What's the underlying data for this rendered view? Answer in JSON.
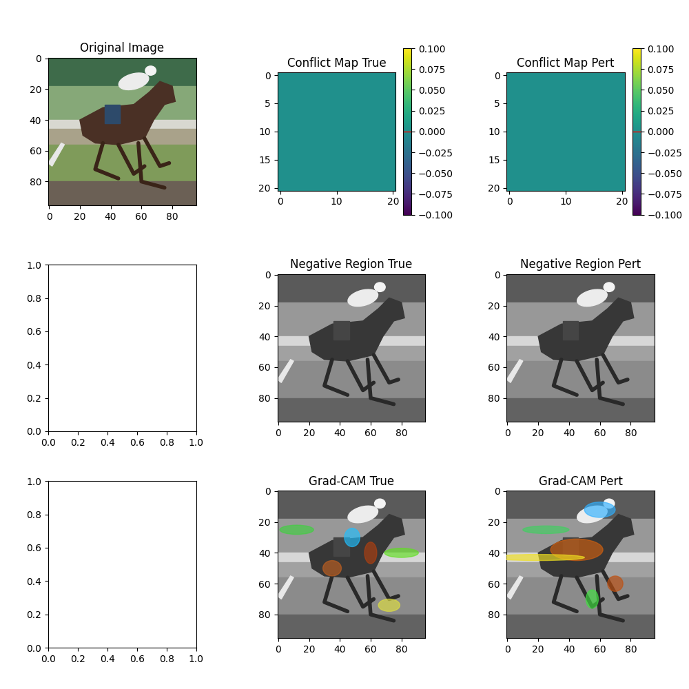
{
  "chart_data": [
    {
      "type": "image",
      "title": "Original Image",
      "xlim": [
        -0.5,
        95.5
      ],
      "ylim": [
        95.5,
        -0.5
      ],
      "xticks": [
        0,
        20,
        40,
        60,
        80
      ],
      "yticks": [
        0,
        20,
        40,
        60,
        80
      ]
    },
    {
      "type": "heatmap",
      "title": "Conflict Map True",
      "xlim": [
        -0.5,
        20.5
      ],
      "ylim": [
        20.5,
        -0.5
      ],
      "xticks": [
        0,
        10,
        20
      ],
      "yticks": [
        0,
        5,
        10,
        15,
        20
      ],
      "cells": [
        [
          0,
          0,
          0,
          0,
          0,
          0,
          0,
          0,
          0,
          0,
          0,
          0,
          0,
          0,
          0,
          0,
          0,
          0,
          0,
          0,
          0
        ],
        [
          0,
          0,
          0,
          0,
          0,
          0,
          0,
          0,
          0,
          0,
          0,
          0,
          0,
          0,
          0,
          0,
          0,
          0,
          0,
          0,
          0
        ],
        [
          0,
          0,
          0,
          0,
          0,
          0,
          0,
          0,
          0,
          0,
          0,
          0,
          0,
          0,
          0,
          0,
          0,
          0,
          0,
          0,
          0
        ],
        [
          0,
          0,
          0,
          0,
          0,
          0,
          0,
          0,
          0,
          0,
          0,
          0,
          0,
          0,
          0,
          0,
          0,
          0,
          0,
          0,
          0
        ],
        [
          0,
          0,
          0,
          0,
          0,
          0,
          0,
          0,
          0,
          0,
          0,
          0,
          0,
          0,
          0,
          0,
          0,
          0,
          0,
          0,
          0
        ],
        [
          0,
          0,
          0,
          0,
          0,
          0,
          0,
          0,
          0,
          0,
          0,
          0,
          0,
          0,
          0,
          0,
          0,
          0,
          0,
          0,
          0
        ],
        [
          0,
          0,
          0,
          0,
          0,
          0,
          0,
          0,
          0,
          0,
          0,
          0,
          0,
          0,
          0,
          0,
          0,
          0,
          0,
          0,
          0
        ],
        [
          0,
          0,
          0,
          0,
          0,
          0,
          0,
          0,
          0,
          0,
          0,
          0,
          0,
          0,
          0,
          0,
          0,
          0,
          0,
          0,
          0
        ],
        [
          0,
          0,
          0,
          0,
          0,
          0,
          0,
          0,
          0,
          0,
          0,
          0,
          0,
          0,
          0,
          0,
          0,
          0,
          0,
          0,
          0
        ],
        [
          0,
          0,
          0,
          0,
          0,
          0,
          0,
          0,
          0,
          0,
          0,
          0,
          0,
          0,
          0,
          0,
          0,
          0,
          0,
          0,
          0
        ],
        [
          0,
          0,
          0,
          0,
          0,
          0,
          0,
          0,
          0,
          0,
          0,
          0,
          0,
          0,
          0,
          0,
          0,
          0,
          0,
          0,
          0
        ],
        [
          0,
          0,
          0,
          0,
          0,
          0,
          0,
          0,
          0,
          0,
          0,
          0,
          0,
          0,
          0,
          0,
          0,
          0,
          0,
          0,
          0
        ],
        [
          0,
          0,
          0,
          0,
          0,
          0,
          0,
          0,
          0,
          0,
          0,
          0,
          0,
          0,
          0,
          0,
          0,
          0,
          0,
          0,
          0
        ],
        [
          0,
          0,
          0,
          0,
          0,
          0,
          0,
          0,
          0,
          0,
          0,
          0,
          0,
          0,
          0,
          0,
          0,
          0,
          0,
          0,
          0
        ],
        [
          0,
          0,
          0,
          0,
          0,
          0,
          0,
          0,
          0,
          0,
          0,
          0,
          0,
          0,
          0,
          0,
          0,
          0,
          0,
          0,
          0
        ],
        [
          0,
          0,
          0,
          0,
          0,
          0,
          0,
          0,
          0,
          0,
          0,
          0,
          0,
          0,
          0,
          0,
          0,
          0,
          0,
          0,
          0
        ],
        [
          0,
          0,
          0,
          0,
          0,
          0,
          0,
          0,
          0,
          0,
          0,
          0,
          0,
          0,
          0,
          0,
          0,
          0,
          0,
          0,
          0
        ],
        [
          0,
          0,
          0,
          0,
          0,
          0,
          0,
          0,
          0,
          0,
          0,
          0,
          0,
          0,
          0,
          0,
          0,
          0,
          0,
          0,
          0
        ],
        [
          0,
          0,
          0,
          0,
          0,
          0,
          0,
          0,
          0,
          0,
          0,
          0,
          0,
          0,
          0,
          0,
          0,
          0,
          0,
          0,
          0
        ],
        [
          0,
          0,
          0,
          0,
          0,
          0,
          0,
          0,
          0,
          0,
          0,
          0,
          0,
          0,
          0,
          0,
          0,
          0,
          0,
          0,
          0
        ],
        [
          0,
          0,
          0,
          0,
          0,
          0,
          0,
          0,
          0,
          0,
          0,
          0,
          0,
          0,
          0,
          0,
          0,
          0,
          0,
          0,
          0
        ]
      ],
      "color_range": [
        -0.1,
        0.1
      ],
      "color_ticks": [
        {
          "value": -0.1,
          "label": "−0.100"
        },
        {
          "value": -0.075,
          "label": "−0.075"
        },
        {
          "value": -0.05,
          "label": "−0.050"
        },
        {
          "value": -0.025,
          "label": "−0.025"
        },
        {
          "value": 0,
          "label": "0.000"
        },
        {
          "value": 0.025,
          "label": "0.025"
        },
        {
          "value": 0.05,
          "label": "0.050"
        },
        {
          "value": 0.075,
          "label": "0.075"
        },
        {
          "value": 0.1,
          "label": "0.100"
        }
      ]
    },
    {
      "type": "heatmap",
      "title": "Conflict Map Pert",
      "xlim": [
        -0.5,
        20.5
      ],
      "ylim": [
        20.5,
        -0.5
      ],
      "xticks": [
        0,
        10,
        20
      ],
      "yticks": [
        0,
        5,
        10,
        15,
        20
      ],
      "cells": [
        [
          0,
          0,
          0,
          0,
          0,
          0,
          0,
          0,
          0,
          0,
          0,
          0,
          0,
          0,
          0,
          0,
          0,
          0,
          0,
          0,
          0
        ],
        [
          0,
          0,
          0,
          0,
          0,
          0,
          0,
          0,
          0,
          0,
          0,
          0,
          0,
          0,
          0,
          0,
          0,
          0,
          0,
          0,
          0
        ],
        [
          0,
          0,
          0,
          0,
          0,
          0,
          0,
          0,
          0,
          0,
          0,
          0,
          0,
          0,
          0,
          0,
          0,
          0,
          0,
          0,
          0
        ],
        [
          0,
          0,
          0,
          0,
          0,
          0,
          0,
          0,
          0,
          0,
          0,
          0,
          0,
          0,
          0,
          0,
          0,
          0,
          0,
          0,
          0
        ],
        [
          0,
          0,
          0,
          0,
          0,
          0,
          0,
          0,
          0,
          0,
          0,
          0,
          0,
          0,
          0,
          0,
          0,
          0,
          0,
          0,
          0
        ],
        [
          0,
          0,
          0,
          0,
          0,
          0,
          0,
          0,
          0,
          0,
          0,
          0,
          0,
          0,
          0,
          0,
          0,
          0,
          0,
          0,
          0
        ],
        [
          0,
          0,
          0,
          0,
          0,
          0,
          0,
          0,
          0,
          0,
          0,
          0,
          0,
          0,
          0,
          0,
          0,
          0,
          0,
          0,
          0
        ],
        [
          0,
          0,
          0,
          0,
          0,
          0,
          0,
          0,
          0,
          0,
          0,
          0,
          0,
          0,
          0,
          0,
          0,
          0,
          0,
          0,
          0
        ],
        [
          0,
          0,
          0,
          0,
          0,
          0,
          0,
          0,
          0,
          0,
          0,
          0,
          0,
          0,
          0,
          0,
          0,
          0,
          0,
          0,
          0
        ],
        [
          0,
          0,
          0,
          0,
          0,
          0,
          0,
          0,
          0,
          0,
          0,
          0,
          0,
          0,
          0,
          0,
          0,
          0,
          0,
          0,
          0
        ],
        [
          0,
          0,
          0,
          0,
          0,
          0,
          0,
          0,
          0,
          0,
          0,
          0,
          0,
          0,
          0,
          0,
          0,
          0,
          0,
          0,
          0
        ],
        [
          0,
          0,
          0,
          0,
          0,
          0,
          0,
          0,
          0,
          0,
          0,
          0,
          0,
          0,
          0,
          0,
          0,
          0,
          0,
          0,
          0
        ],
        [
          0,
          0,
          0,
          0,
          0,
          0,
          0,
          0,
          0,
          0,
          0,
          0,
          0,
          0,
          0,
          0,
          0,
          0,
          0,
          0,
          0
        ],
        [
          0,
          0,
          0,
          0,
          0,
          0,
          0,
          0,
          0,
          0,
          0,
          0,
          0,
          0,
          0,
          0,
          0,
          0,
          0,
          0,
          0
        ],
        [
          0,
          0,
          0,
          0,
          0,
          0,
          0,
          0,
          0,
          0,
          0,
          0,
          0,
          0,
          0,
          0,
          0,
          0,
          0,
          0,
          0
        ],
        [
          0,
          0,
          0,
          0,
          0,
          0,
          0,
          0,
          0,
          0,
          0,
          0,
          0,
          0,
          0,
          0,
          0,
          0,
          0,
          0,
          0
        ],
        [
          0,
          0,
          0,
          0,
          0,
          0,
          0,
          0,
          0,
          0,
          0,
          0,
          0,
          0,
          0,
          0,
          0,
          0,
          0,
          0,
          0
        ],
        [
          0,
          0,
          0,
          0,
          0,
          0,
          0,
          0,
          0,
          0,
          0,
          0,
          0,
          0,
          0,
          0,
          0,
          0,
          0,
          0,
          0
        ],
        [
          0,
          0,
          0,
          0,
          0,
          0,
          0,
          0,
          0,
          0,
          0,
          0,
          0,
          0,
          0,
          0,
          0,
          0,
          0,
          0,
          0
        ],
        [
          0,
          0,
          0,
          0,
          0,
          0,
          0,
          0,
          0,
          0,
          0,
          0,
          0,
          0,
          0,
          0,
          0,
          0,
          0,
          0,
          0
        ],
        [
          0,
          0,
          0,
          0,
          0,
          0,
          0,
          0,
          0,
          0,
          0,
          0,
          0,
          0,
          0,
          0,
          0,
          0,
          0,
          0,
          0
        ]
      ],
      "color_range": [
        -0.1,
        0.1
      ],
      "color_ticks": [
        {
          "value": -0.1,
          "label": "−0.100"
        },
        {
          "value": -0.075,
          "label": "−0.075"
        },
        {
          "value": -0.05,
          "label": "−0.050"
        },
        {
          "value": -0.025,
          "label": "−0.025"
        },
        {
          "value": 0,
          "label": "0.000"
        },
        {
          "value": 0.025,
          "label": "0.025"
        },
        {
          "value": 0.05,
          "label": "0.050"
        },
        {
          "value": 0.075,
          "label": "0.075"
        },
        {
          "value": 0.1,
          "label": "0.100"
        }
      ]
    },
    {
      "type": "blank",
      "xlim": [
        0.0,
        1.0
      ],
      "ylim": [
        0.0,
        1.0
      ],
      "xticks": [
        0.0,
        0.2,
        0.4,
        0.6,
        0.8,
        1.0
      ],
      "yticks": [
        0.0,
        0.2,
        0.4,
        0.6,
        0.8,
        1.0
      ]
    },
    {
      "type": "grayscale",
      "title": "Negative Region True",
      "xlim": [
        -0.5,
        95.5
      ],
      "ylim": [
        95.5,
        -0.5
      ],
      "xticks": [
        0,
        20,
        40,
        60,
        80
      ],
      "yticks": [
        0,
        20,
        40,
        60,
        80
      ]
    },
    {
      "type": "grayscale",
      "title": "Negative Region Pert",
      "xlim": [
        -0.5,
        95.5
      ],
      "ylim": [
        95.5,
        -0.5
      ],
      "xticks": [
        0,
        20,
        40,
        60,
        80
      ],
      "yticks": [
        0,
        20,
        40,
        60,
        80
      ]
    },
    {
      "type": "blank",
      "xlim": [
        0.0,
        1.0
      ],
      "ylim": [
        0.0,
        1.0
      ],
      "xticks": [
        0.0,
        0.2,
        0.4,
        0.6,
        0.8,
        1.0
      ],
      "yticks": [
        0.0,
        0.2,
        0.4,
        0.6,
        0.8,
        1.0
      ]
    },
    {
      "type": "overlay",
      "title": "Grad-CAM True",
      "xlim": [
        -0.5,
        95.5
      ],
      "ylim": [
        95.5,
        -0.5
      ],
      "xticks": [
        0,
        20,
        40,
        60,
        80
      ],
      "yticks": [
        0,
        20,
        40,
        60,
        80
      ]
    },
    {
      "type": "overlay",
      "title": "Grad-CAM Pert",
      "xlim": [
        -0.5,
        95.5
      ],
      "ylim": [
        95.5,
        -0.5
      ],
      "xticks": [
        0,
        20,
        40,
        60,
        80
      ],
      "yticks": [
        0,
        20,
        40,
        60,
        80
      ]
    }
  ]
}
